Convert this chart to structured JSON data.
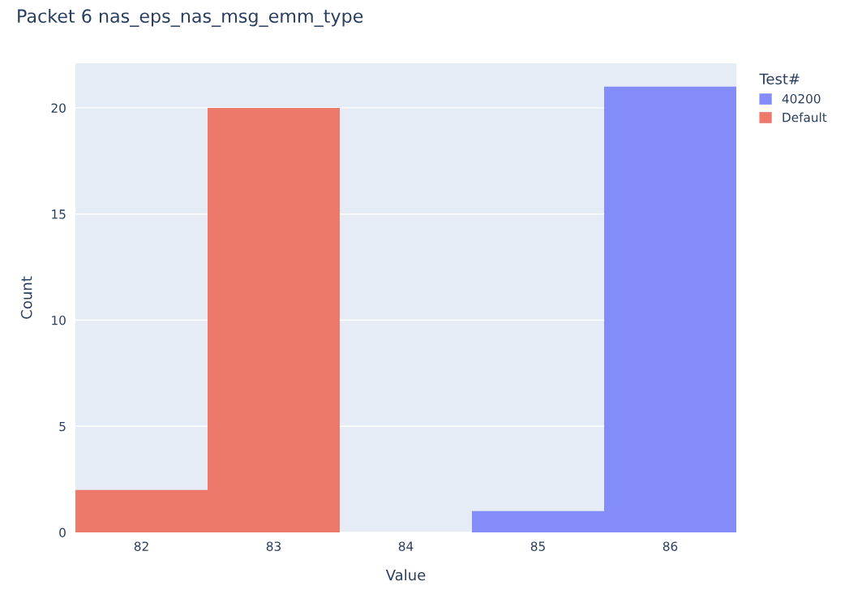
{
  "chart_data": {
    "type": "histogram",
    "title": "Packet 6 nas_eps_nas_msg_emm_type",
    "xlabel": "Value",
    "ylabel": "Count",
    "legend_title": "Test#",
    "bins": [
      81.5,
      82.5,
      83.5,
      84.5,
      85.5,
      86.5
    ],
    "series": [
      {
        "name": "40200",
        "color": "#838cf9",
        "values": [
          0,
          0,
          0,
          1,
          21
        ]
      },
      {
        "name": "Default",
        "color": "#ed796a",
        "values": [
          2,
          20,
          0,
          0,
          0
        ]
      }
    ],
    "xlim": [
      81.5,
      86.5
    ],
    "xticks": [
      82,
      83,
      84,
      85,
      86
    ],
    "ylim": [
      0,
      22.1
    ],
    "yticks": [
      0,
      5,
      10,
      15,
      20
    ],
    "grid": "y",
    "legend": "top right"
  }
}
